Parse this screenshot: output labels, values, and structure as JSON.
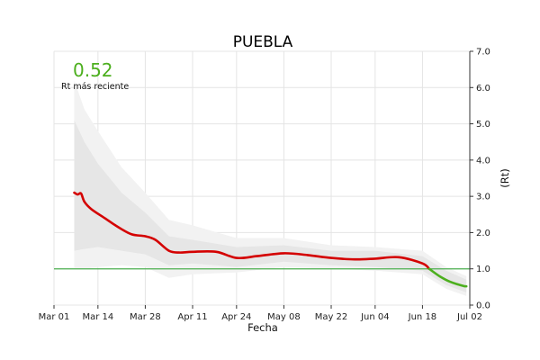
{
  "chart_data": {
    "type": "line",
    "title": "PUEBLA",
    "xlabel": "Fecha",
    "ylabel": "(Rt)",
    "annotation": {
      "value": "0.52",
      "caption": "Rt más reciente",
      "color": "#4caf1e"
    },
    "xlim": [
      "2020-03-01",
      "2020-07-02"
    ],
    "ylim": [
      0,
      7
    ],
    "x_ticks": [
      {
        "date": "2020-03-01",
        "label": "Mar 01"
      },
      {
        "date": "2020-03-14",
        "label": "Mar 14"
      },
      {
        "date": "2020-03-28",
        "label": "Mar 28"
      },
      {
        "date": "2020-04-11",
        "label": "Apr 11"
      },
      {
        "date": "2020-04-24",
        "label": "Apr 24"
      },
      {
        "date": "2020-05-08",
        "label": "May 08"
      },
      {
        "date": "2020-05-22",
        "label": "May 22"
      },
      {
        "date": "2020-06-04",
        "label": "Jun 04"
      },
      {
        "date": "2020-06-18",
        "label": "Jun 18"
      },
      {
        "date": "2020-07-02",
        "label": "Jul 02"
      }
    ],
    "y_ticks": [
      0,
      1,
      2,
      3,
      4,
      5,
      6,
      7
    ],
    "y_tick_labels": [
      "0.0",
      "1.0",
      "2.0",
      "3.0",
      "4.0",
      "5.0",
      "6.0",
      "7.0"
    ],
    "reference_line": {
      "y": 1.0,
      "color": "#4caf50"
    },
    "grid": true,
    "y_axis_side": "right",
    "band_outer": {
      "color": "#f2f2f2"
    },
    "band_inner": {
      "color": "#e6e6e6"
    },
    "series": [
      {
        "color": "#d40000",
        "points": [
          [
            "2020-03-07",
            3.1
          ],
          [
            "2020-03-08",
            3.05
          ],
          [
            "2020-03-09",
            3.08
          ],
          [
            "2020-03-10",
            2.85
          ],
          [
            "2020-03-12",
            2.65
          ],
          [
            "2020-03-16",
            2.4
          ],
          [
            "2020-03-20",
            2.15
          ],
          [
            "2020-03-24",
            1.95
          ],
          [
            "2020-03-28",
            1.9
          ],
          [
            "2020-03-31",
            1.8
          ],
          [
            "2020-04-04",
            1.5
          ],
          [
            "2020-04-07",
            1.45
          ],
          [
            "2020-04-11",
            1.47
          ],
          [
            "2020-04-18",
            1.47
          ],
          [
            "2020-04-24",
            1.3
          ],
          [
            "2020-04-30",
            1.35
          ],
          [
            "2020-05-08",
            1.43
          ],
          [
            "2020-05-15",
            1.38
          ],
          [
            "2020-05-22",
            1.3
          ],
          [
            "2020-05-29",
            1.26
          ],
          [
            "2020-06-04",
            1.28
          ],
          [
            "2020-06-11",
            1.32
          ],
          [
            "2020-06-18",
            1.15
          ],
          [
            "2020-06-20",
            1.0
          ]
        ]
      },
      {
        "color": "#4caf1e",
        "points": [
          [
            "2020-06-20",
            1.0
          ],
          [
            "2020-06-23",
            0.8
          ],
          [
            "2020-06-26",
            0.65
          ],
          [
            "2020-06-30",
            0.53
          ],
          [
            "2020-07-01",
            0.52
          ]
        ]
      }
    ],
    "ci_outer": [
      [
        "2020-03-07",
        1.0,
        6.2
      ],
      [
        "2020-03-10",
        1.0,
        5.4
      ],
      [
        "2020-03-14",
        1.05,
        4.8
      ],
      [
        "2020-03-21",
        1.1,
        3.8
      ],
      [
        "2020-03-28",
        1.05,
        3.1
      ],
      [
        "2020-04-04",
        0.75,
        2.35
      ],
      [
        "2020-04-11",
        0.85,
        2.2
      ],
      [
        "2020-04-24",
        0.9,
        1.85
      ],
      [
        "2020-05-08",
        1.05,
        1.85
      ],
      [
        "2020-05-22",
        1.0,
        1.65
      ],
      [
        "2020-06-04",
        0.95,
        1.6
      ],
      [
        "2020-06-18",
        0.85,
        1.5
      ],
      [
        "2020-06-25",
        0.45,
        1.05
      ],
      [
        "2020-07-01",
        0.25,
        0.8
      ]
    ],
    "ci_inner": [
      [
        "2020-03-07",
        1.5,
        5.1
      ],
      [
        "2020-03-10",
        1.55,
        4.5
      ],
      [
        "2020-03-14",
        1.6,
        3.9
      ],
      [
        "2020-03-21",
        1.5,
        3.1
      ],
      [
        "2020-03-28",
        1.4,
        2.55
      ],
      [
        "2020-04-04",
        1.1,
        1.9
      ],
      [
        "2020-04-11",
        1.15,
        1.8
      ],
      [
        "2020-04-24",
        1.05,
        1.6
      ],
      [
        "2020-05-08",
        1.2,
        1.65
      ],
      [
        "2020-05-22",
        1.1,
        1.5
      ],
      [
        "2020-06-04",
        1.05,
        1.5
      ],
      [
        "2020-06-18",
        0.95,
        1.35
      ],
      [
        "2020-06-25",
        0.55,
        0.95
      ],
      [
        "2020-07-01",
        0.35,
        0.7
      ]
    ]
  }
}
